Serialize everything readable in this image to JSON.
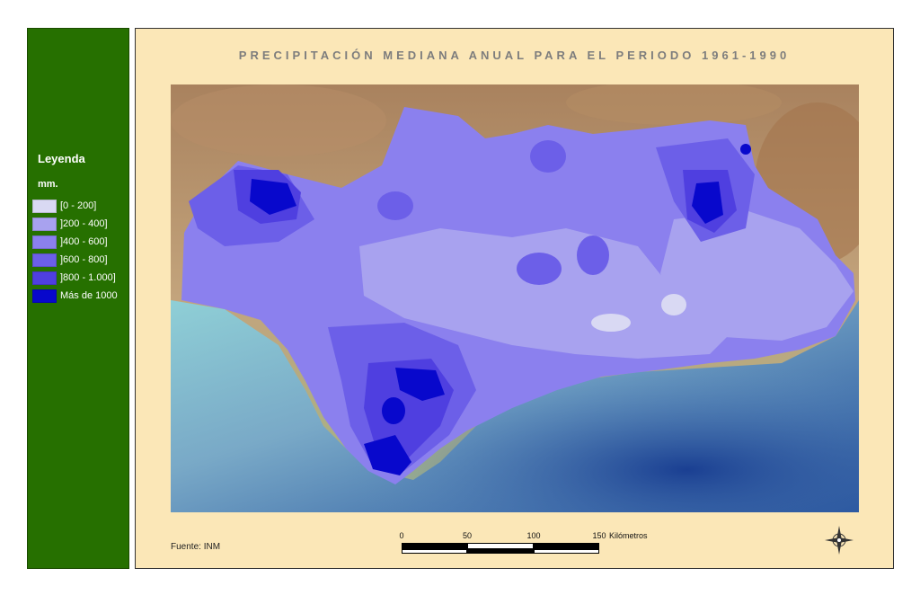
{
  "title": "PRECIPITACIÓN MEDIANA ANUAL PARA EL PERIODO 1961-1990",
  "legend": {
    "title": "Leyenda",
    "unit": "mm.",
    "items": [
      {
        "label": "[0 - 200]",
        "color": "#d9d9f3"
      },
      {
        "label": "]200 - 400]",
        "color": "#a8a2ef"
      },
      {
        "label": "]400 - 600]",
        "color": "#8b80ee"
      },
      {
        "label": "]600 - 800]",
        "color": "#6c5fe8"
      },
      {
        "label": "]800 - 1.000]",
        "color": "#4f3fe0"
      },
      {
        "label": "Más de 1000",
        "color": "#0808cc"
      }
    ]
  },
  "source": "Fuente: INM",
  "scale": {
    "ticks": [
      "0",
      "50",
      "100",
      "150"
    ],
    "unit": "Kilómetros"
  },
  "colors": {
    "legend_panel": "#267000",
    "map_background": "#fbe7b7",
    "terrain": "#b5926c",
    "sea": "#7fb7c9"
  },
  "compass": "north-arrow-icon"
}
